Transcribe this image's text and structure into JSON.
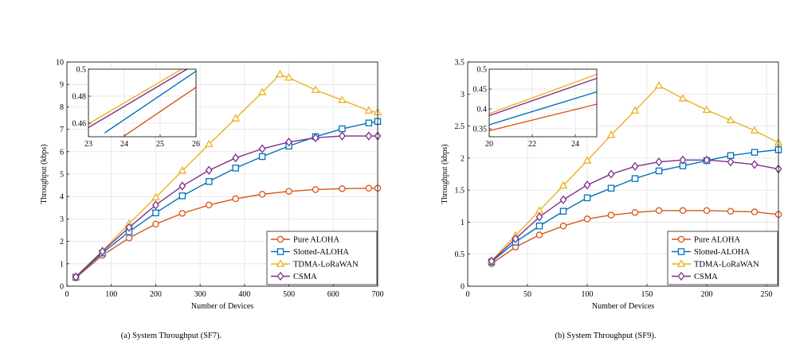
{
  "chart_data": [
    {
      "type": "line",
      "caption": "(a) System Throughput (SF7).",
      "xlabel": "Number of Devices",
      "ylabel": "Throughput (kbps)",
      "xlim": [
        0,
        700
      ],
      "ylim": [
        0,
        10
      ],
      "xticks": [
        0,
        100,
        200,
        300,
        400,
        500,
        600,
        700
      ],
      "yticks": [
        0,
        1,
        2,
        3,
        4,
        5,
        6,
        7,
        8,
        9,
        10
      ],
      "grid": true,
      "legend_position": "bottom-right",
      "series": [
        {
          "name": "Pure ALOHA",
          "color": "#D95319",
          "marker": "circle",
          "x": [
            20,
            80,
            140,
            200,
            260,
            320,
            380,
            440,
            500,
            560,
            620,
            680,
            700
          ],
          "y": [
            0.38,
            1.38,
            2.15,
            2.77,
            3.25,
            3.62,
            3.9,
            4.1,
            4.23,
            4.31,
            4.35,
            4.37,
            4.37
          ]
        },
        {
          "name": "Slotted-ALOHA",
          "color": "#0072BD",
          "marker": "square",
          "x": [
            20,
            80,
            140,
            200,
            260,
            320,
            380,
            440,
            500,
            560,
            620,
            680,
            700
          ],
          "y": [
            0.4,
            1.48,
            2.43,
            3.27,
            4.03,
            4.67,
            5.27,
            5.78,
            6.25,
            6.67,
            7.02,
            7.28,
            7.35
          ]
        },
        {
          "name": "TDMA-LoRaWAN",
          "color": "#EDB120",
          "marker": "triangle",
          "x": [
            20,
            80,
            140,
            200,
            260,
            320,
            380,
            440,
            480,
            500,
            560,
            620,
            680,
            700
          ],
          "y": [
            0.43,
            1.57,
            2.79,
            3.96,
            5.15,
            6.33,
            7.48,
            8.65,
            9.45,
            9.3,
            8.75,
            8.3,
            7.83,
            7.75
          ]
        },
        {
          "name": "CSMA",
          "color": "#7E2F8E",
          "marker": "diamond",
          "x": [
            20,
            80,
            140,
            200,
            260,
            320,
            380,
            440,
            500,
            560,
            620,
            680,
            700
          ],
          "y": [
            0.41,
            1.55,
            2.62,
            3.62,
            4.47,
            5.17,
            5.72,
            6.13,
            6.43,
            6.62,
            6.7,
            6.7,
            6.7
          ]
        }
      ],
      "inset": {
        "xlim": [
          23,
          26
        ],
        "ylim": [
          0.45,
          0.5
        ],
        "xticks": [
          23,
          24,
          25,
          26
        ],
        "yticks": [
          0.46,
          0.48,
          0.5
        ],
        "series": [
          {
            "color": "#D95319",
            "x": [
              24.0,
              26.0
            ],
            "y": [
              0.4506,
              0.4866
            ]
          },
          {
            "color": "#0072BD",
            "x": [
              23.45,
              26.0
            ],
            "y": [
              0.4528,
              0.4985
            ]
          },
          {
            "color": "#7E2F8E",
            "x": [
              23.0,
              25.75
            ],
            "y": [
              0.4568,
              0.5
            ]
          },
          {
            "color": "#EDB120",
            "x": [
              23.0,
              25.6
            ],
            "y": [
              0.4595,
              0.5
            ]
          }
        ]
      }
    },
    {
      "type": "line",
      "caption": "(b) System Throughput (SF9).",
      "xlabel": "Number of Devices",
      "ylabel": "Throughput (kbps)",
      "xlim": [
        0,
        260
      ],
      "ylim": [
        0,
        3.5
      ],
      "xticks": [
        0,
        50,
        100,
        150,
        200,
        250
      ],
      "yticks": [
        0,
        0.5,
        1,
        1.5,
        2,
        2.5,
        3,
        3.5
      ],
      "grid": true,
      "legend_position": "bottom-right",
      "series": [
        {
          "name": "Pure ALOHA",
          "color": "#D95319",
          "marker": "circle",
          "x": [
            20,
            40,
            60,
            80,
            100,
            120,
            140,
            160,
            180,
            200,
            220,
            240,
            260
          ],
          "y": [
            0.35,
            0.61,
            0.8,
            0.94,
            1.05,
            1.11,
            1.15,
            1.18,
            1.18,
            1.18,
            1.17,
            1.16,
            1.12
          ]
        },
        {
          "name": "Slotted-ALOHA",
          "color": "#0072BD",
          "marker": "square",
          "x": [
            20,
            40,
            60,
            80,
            100,
            120,
            140,
            160,
            180,
            200,
            220,
            240,
            260
          ],
          "y": [
            0.38,
            0.69,
            0.94,
            1.17,
            1.38,
            1.53,
            1.68,
            1.8,
            1.88,
            1.96,
            2.04,
            2.09,
            2.13
          ]
        },
        {
          "name": "TDMA-LoRaWAN",
          "color": "#EDB120",
          "marker": "triangle",
          "x": [
            20,
            40,
            60,
            80,
            100,
            120,
            140,
            160,
            180,
            200,
            220,
            240,
            260
          ],
          "y": [
            0.4,
            0.79,
            1.18,
            1.57,
            1.96,
            2.36,
            2.74,
            3.13,
            2.93,
            2.75,
            2.59,
            2.43,
            2.24
          ]
        },
        {
          "name": "CSMA",
          "color": "#7E2F8E",
          "marker": "diamond",
          "x": [
            20,
            40,
            60,
            80,
            100,
            120,
            140,
            160,
            180,
            200,
            220,
            240,
            260
          ],
          "y": [
            0.39,
            0.74,
            1.08,
            1.35,
            1.58,
            1.75,
            1.87,
            1.94,
            1.97,
            1.97,
            1.94,
            1.9,
            1.83
          ]
        }
      ],
      "inset": {
        "xlim": [
          20,
          25
        ],
        "ylim": [
          0.33,
          0.5
        ],
        "xticks": [
          20,
          22,
          24
        ],
        "yticks": [
          0.35,
          0.4,
          0.45,
          0.5
        ],
        "series": [
          {
            "color": "#D95319",
            "x": [
              20,
              25
            ],
            "y": [
              0.345,
              0.412
            ]
          },
          {
            "color": "#0072BD",
            "x": [
              20,
              25
            ],
            "y": [
              0.36,
              0.443
            ]
          },
          {
            "color": "#7E2F8E",
            "x": [
              20,
              25
            ],
            "y": [
              0.383,
              0.477
            ]
          },
          {
            "color": "#EDB120",
            "x": [
              20,
              25
            ],
            "y": [
              0.388,
              0.487
            ]
          }
        ]
      }
    }
  ]
}
